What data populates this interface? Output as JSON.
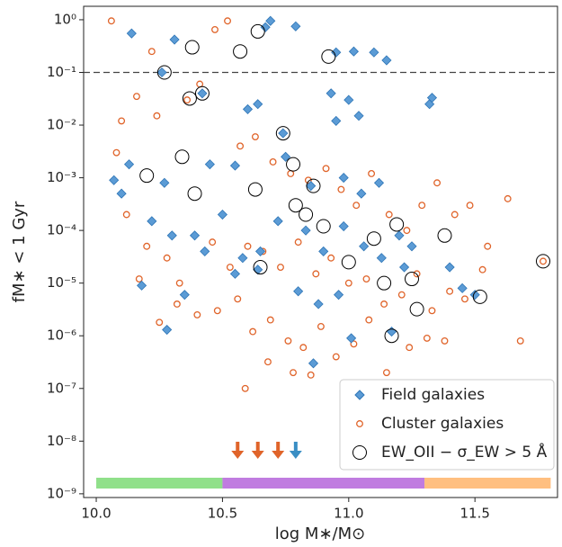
{
  "chart_data": {
    "type": "scatter",
    "x_label": "log M∗/M⊙",
    "y_label": "fM∗ < 1 Gyr",
    "log_y": true,
    "xlim": [
      9.95,
      11.827
    ],
    "ylim": [
      8.5e-10,
      1.8
    ],
    "xticks": [
      {
        "value": 10,
        "label": "10.0"
      },
      10.5,
      {
        "value": 11,
        "label": "11.0"
      },
      11.5
    ],
    "yticks": [
      {
        "value": 1e-09,
        "label": "10⁻⁹"
      },
      {
        "value": 1e-08,
        "label": "10⁻⁸"
      },
      {
        "value": 1e-07,
        "label": "10⁻⁷"
      },
      {
        "value": 1e-06,
        "label": "10⁻⁶"
      },
      {
        "value": 1e-05,
        "label": "10⁻⁵"
      },
      {
        "value": 0.0001,
        "label": "10⁻⁴"
      },
      {
        "value": 0.001,
        "label": "10⁻³"
      },
      {
        "value": 0.01,
        "label": "10⁻²"
      },
      {
        "value": 0.1,
        "label": "10⁻¹"
      },
      {
        "value": 1,
        "label": "10⁰"
      }
    ],
    "hline": 0.1,
    "legend": "lower right",
    "series": [
      {
        "name": "Field galaxies",
        "color": "#5b9bd5",
        "marker": "diamond",
        "x": [
          10.14,
          10.31,
          10.69,
          10.67,
          10.79,
          10.95,
          11.02,
          11.1,
          11.15,
          10.26,
          10.42,
          10.64,
          10.6,
          10.74,
          10.93,
          10.95,
          11.0,
          11.04,
          11.32,
          11.33,
          10.13,
          10.07,
          10.27,
          10.45,
          10.55,
          10.75,
          10.85,
          10.98,
          11.05,
          11.12,
          10.1,
          10.22,
          10.3,
          10.39,
          10.43,
          10.5,
          10.58,
          10.65,
          10.72,
          10.83,
          10.9,
          10.98,
          11.06,
          11.13,
          11.2,
          11.22,
          11.25,
          11.4,
          11.45,
          11.5,
          10.18,
          10.35,
          10.28,
          10.55,
          10.64,
          10.8,
          10.88,
          10.96,
          11.01,
          11.17,
          10.86
        ],
        "values": [
          0.55,
          0.42,
          0.95,
          0.72,
          0.75,
          0.24,
          0.25,
          0.24,
          0.17,
          0.1,
          0.04,
          0.025,
          0.02,
          0.007,
          0.04,
          0.012,
          0.03,
          0.015,
          0.025,
          0.033,
          0.0018,
          0.0009,
          0.0008,
          0.0018,
          0.0017,
          0.0025,
          0.0007,
          0.001,
          0.0005,
          0.0008,
          0.0005,
          0.00015,
          8e-05,
          8e-05,
          4e-05,
          0.0002,
          3e-05,
          4e-05,
          0.00015,
          0.0001,
          4e-05,
          0.00012,
          5e-05,
          3e-05,
          8e-05,
          2e-05,
          5e-05,
          2e-05,
          8e-06,
          6e-06,
          9e-06,
          6e-06,
          1.3e-06,
          1.5e-05,
          1.8e-05,
          7e-06,
          4e-06,
          6e-06,
          9e-07,
          1.2e-06,
          3e-07
        ]
      },
      {
        "name": "Cluster galaxies",
        "color": "#e0642a",
        "marker": "circle",
        "x": [
          10.06,
          10.52,
          10.47,
          10.22,
          10.16,
          10.1,
          10.08,
          10.24,
          10.36,
          10.41,
          10.57,
          10.63,
          10.7,
          10.77,
          10.84,
          10.91,
          10.97,
          11.03,
          11.09,
          11.16,
          11.23,
          11.29,
          11.35,
          11.42,
          11.48,
          11.55,
          11.63,
          11.68,
          11.77,
          10.12,
          10.2,
          10.28,
          10.33,
          10.46,
          10.53,
          10.6,
          10.66,
          10.73,
          10.8,
          10.87,
          10.93,
          11.0,
          11.07,
          11.14,
          11.21,
          11.27,
          11.33,
          11.4,
          11.46,
          11.53,
          10.17,
          10.25,
          10.32,
          10.4,
          10.48,
          10.56,
          10.62,
          10.69,
          10.76,
          10.82,
          10.89,
          10.95,
          11.02,
          11.08,
          11.15,
          11.24,
          11.31,
          11.38,
          10.59,
          10.68,
          10.78,
          10.85
        ],
        "values": [
          0.95,
          0.95,
          0.65,
          0.25,
          0.035,
          0.012,
          0.003,
          0.015,
          0.03,
          0.06,
          0.004,
          0.006,
          0.002,
          0.0012,
          0.0009,
          0.0015,
          0.0006,
          0.0003,
          0.0012,
          0.0002,
          0.0001,
          0.0003,
          0.0008,
          0.0002,
          0.0003,
          5e-05,
          0.0004,
          8e-07,
          2.6e-05,
          0.0002,
          5e-05,
          3e-05,
          1e-05,
          6e-05,
          2e-05,
          5e-05,
          4e-05,
          2e-05,
          6e-05,
          1.5e-05,
          3e-05,
          1e-05,
          1.2e-05,
          4e-06,
          6e-06,
          1.5e-05,
          3e-06,
          7e-06,
          5e-06,
          1.8e-05,
          1.2e-05,
          1.8e-06,
          4e-06,
          2.5e-06,
          3e-06,
          5e-06,
          1.2e-06,
          2e-06,
          8e-07,
          6e-07,
          1.5e-06,
          4e-07,
          7e-07,
          2e-06,
          2e-07,
          6e-07,
          9e-07,
          8e-07,
          1e-07,
          3.2e-07,
          2e-07,
          1.8e-07
        ]
      },
      {
        "name": "EW_OII − σ_EW > 5 Å",
        "color": "#000000",
        "marker": "ring",
        "x": [
          10.27,
          10.38,
          10.42,
          10.37,
          10.57,
          10.64,
          10.92,
          10.74,
          10.34,
          10.2,
          10.39,
          10.63,
          10.78,
          10.86,
          10.79,
          10.83,
          10.9,
          11.19,
          11.1,
          11.38,
          11.0,
          11.25,
          11.14,
          10.65,
          11.27,
          11.52,
          11.77,
          11.17
        ],
        "values": [
          0.1,
          0.3,
          0.04,
          0.032,
          0.25,
          0.6,
          0.2,
          0.007,
          0.0025,
          0.0011,
          0.0005,
          0.0006,
          0.0018,
          0.0007,
          0.0003,
          0.0002,
          0.00012,
          0.00013,
          7e-05,
          8e-05,
          2.5e-05,
          1.2e-05,
          1e-05,
          2e-05,
          3.2e-06,
          5.5e-06,
          2.6e-05,
          1e-06
        ]
      }
    ],
    "bands": [
      {
        "range": [
          10.0,
          10.5
        ],
        "color": "#90e08a"
      },
      {
        "range": [
          10.5,
          11.3
        ],
        "color": "#c07ce0"
      },
      {
        "range": [
          11.3,
          11.8
        ],
        "color": "#ffbf80"
      }
    ],
    "arrows": [
      {
        "x": 10.56,
        "color": "#e0642a"
      },
      {
        "x": 10.64,
        "color": "#e0642a"
      },
      {
        "x": 10.72,
        "color": "#e0642a"
      },
      {
        "x": 10.79,
        "color": "#3a8ec4"
      }
    ]
  }
}
